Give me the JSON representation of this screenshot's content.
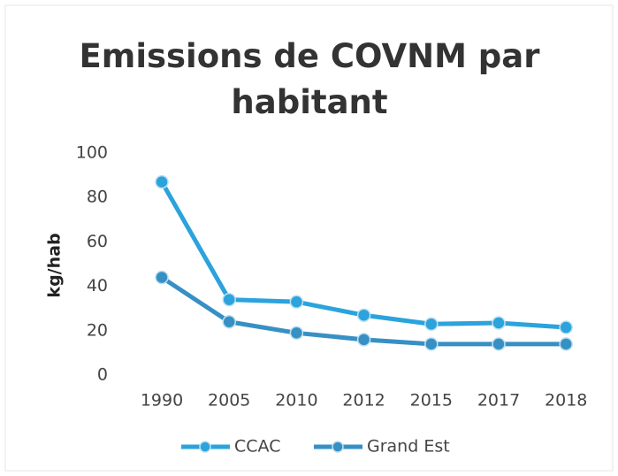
{
  "chart_data": {
    "type": "line",
    "title": "Emissions de COVNM par habitant",
    "ylabel": "kg/hab",
    "categories": [
      "1990",
      "2005",
      "2010",
      "2012",
      "2015",
      "2017",
      "2018"
    ],
    "series": [
      {
        "name": "CCAC",
        "color": "#2ba3dc",
        "values": [
          87,
          34,
          33,
          27,
          23,
          23.5,
          21.5
        ]
      },
      {
        "name": "Grand Est",
        "color": "#3790c4",
        "values": [
          44,
          24,
          19,
          16,
          14,
          14,
          14
        ]
      }
    ],
    "ylim": [
      0,
      100
    ],
    "yticks": [
      0,
      20,
      40,
      60,
      80,
      100
    ],
    "grid": false,
    "legend": "bottom"
  }
}
